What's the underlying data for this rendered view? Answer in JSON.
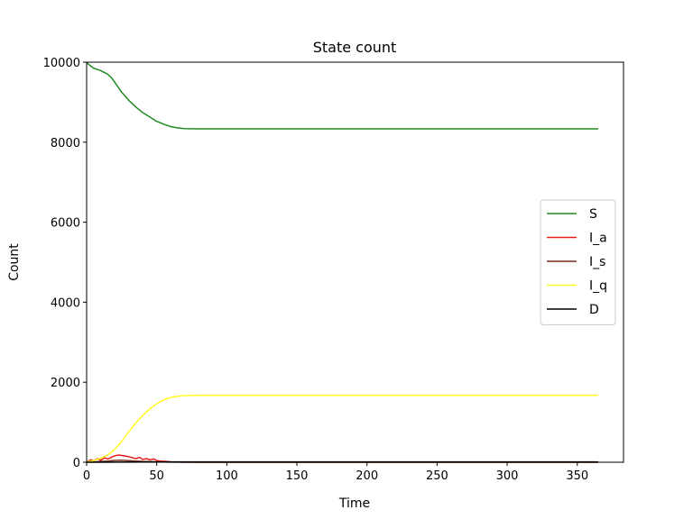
{
  "chart_data": {
    "type": "line",
    "title": "State count",
    "xlabel": "Time",
    "ylabel": "Count",
    "xlim": [
      0,
      383
    ],
    "ylim": [
      0,
      10000
    ],
    "xticks": [
      0,
      50,
      100,
      150,
      200,
      250,
      300,
      350
    ],
    "yticks": [
      0,
      2000,
      4000,
      6000,
      8000,
      10000
    ],
    "legend_position": "center-right",
    "grid": false,
    "series": [
      {
        "name": "S",
        "color": "#228B22",
        "points": [
          [
            0,
            9990
          ],
          [
            3,
            9900
          ],
          [
            5,
            9850
          ],
          [
            10,
            9790
          ],
          [
            15,
            9700
          ],
          [
            18,
            9600
          ],
          [
            20,
            9500
          ],
          [
            25,
            9250
          ],
          [
            30,
            9050
          ],
          [
            35,
            8880
          ],
          [
            40,
            8740
          ],
          [
            45,
            8630
          ],
          [
            50,
            8520
          ],
          [
            55,
            8450
          ],
          [
            60,
            8390
          ],
          [
            65,
            8355
          ],
          [
            70,
            8340
          ],
          [
            75,
            8335
          ],
          [
            80,
            8333
          ],
          [
            100,
            8333
          ],
          [
            150,
            8333
          ],
          [
            200,
            8333
          ],
          [
            250,
            8333
          ],
          [
            300,
            8333
          ],
          [
            365,
            8333
          ]
        ]
      },
      {
        "name": "I_a",
        "color": "#e8201c",
        "points": [
          [
            0,
            10
          ],
          [
            3,
            60
          ],
          [
            5,
            40
          ],
          [
            8,
            90
          ],
          [
            10,
            50
          ],
          [
            13,
            110
          ],
          [
            15,
            80
          ],
          [
            18,
            130
          ],
          [
            20,
            160
          ],
          [
            23,
            180
          ],
          [
            25,
            170
          ],
          [
            28,
            150
          ],
          [
            30,
            140
          ],
          [
            33,
            110
          ],
          [
            35,
            90
          ],
          [
            38,
            120
          ],
          [
            40,
            70
          ],
          [
            43,
            90
          ],
          [
            45,
            60
          ],
          [
            48,
            80
          ],
          [
            50,
            40
          ],
          [
            53,
            30
          ],
          [
            55,
            25
          ],
          [
            58,
            15
          ],
          [
            60,
            8
          ],
          [
            65,
            4
          ],
          [
            70,
            2
          ],
          [
            80,
            0
          ],
          [
            365,
            0
          ]
        ]
      },
      {
        "name": "I_s",
        "color": "#7a2c1c",
        "points": [
          [
            0,
            0
          ],
          [
            5,
            10
          ],
          [
            10,
            20
          ],
          [
            15,
            30
          ],
          [
            20,
            45
          ],
          [
            25,
            50
          ],
          [
            30,
            40
          ],
          [
            35,
            30
          ],
          [
            40,
            20
          ],
          [
            45,
            15
          ],
          [
            50,
            8
          ],
          [
            55,
            4
          ],
          [
            60,
            2
          ],
          [
            70,
            0
          ],
          [
            365,
            0
          ]
        ]
      },
      {
        "name": "I_q",
        "color": "#ffff26",
        "points": [
          [
            0,
            10
          ],
          [
            5,
            40
          ],
          [
            10,
            100
          ],
          [
            15,
            180
          ],
          [
            20,
            320
          ],
          [
            25,
            520
          ],
          [
            30,
            760
          ],
          [
            35,
            980
          ],
          [
            40,
            1170
          ],
          [
            45,
            1330
          ],
          [
            50,
            1460
          ],
          [
            55,
            1560
          ],
          [
            60,
            1620
          ],
          [
            65,
            1650
          ],
          [
            70,
            1665
          ],
          [
            75,
            1670
          ],
          [
            80,
            1672
          ],
          [
            100,
            1672
          ],
          [
            150,
            1672
          ],
          [
            200,
            1672
          ],
          [
            250,
            1672
          ],
          [
            300,
            1672
          ],
          [
            365,
            1672
          ]
        ]
      },
      {
        "name": "D",
        "color": "#000000",
        "points": [
          [
            0,
            0
          ],
          [
            20,
            2
          ],
          [
            40,
            5
          ],
          [
            60,
            8
          ],
          [
            80,
            10
          ],
          [
            365,
            10
          ]
        ]
      }
    ]
  }
}
